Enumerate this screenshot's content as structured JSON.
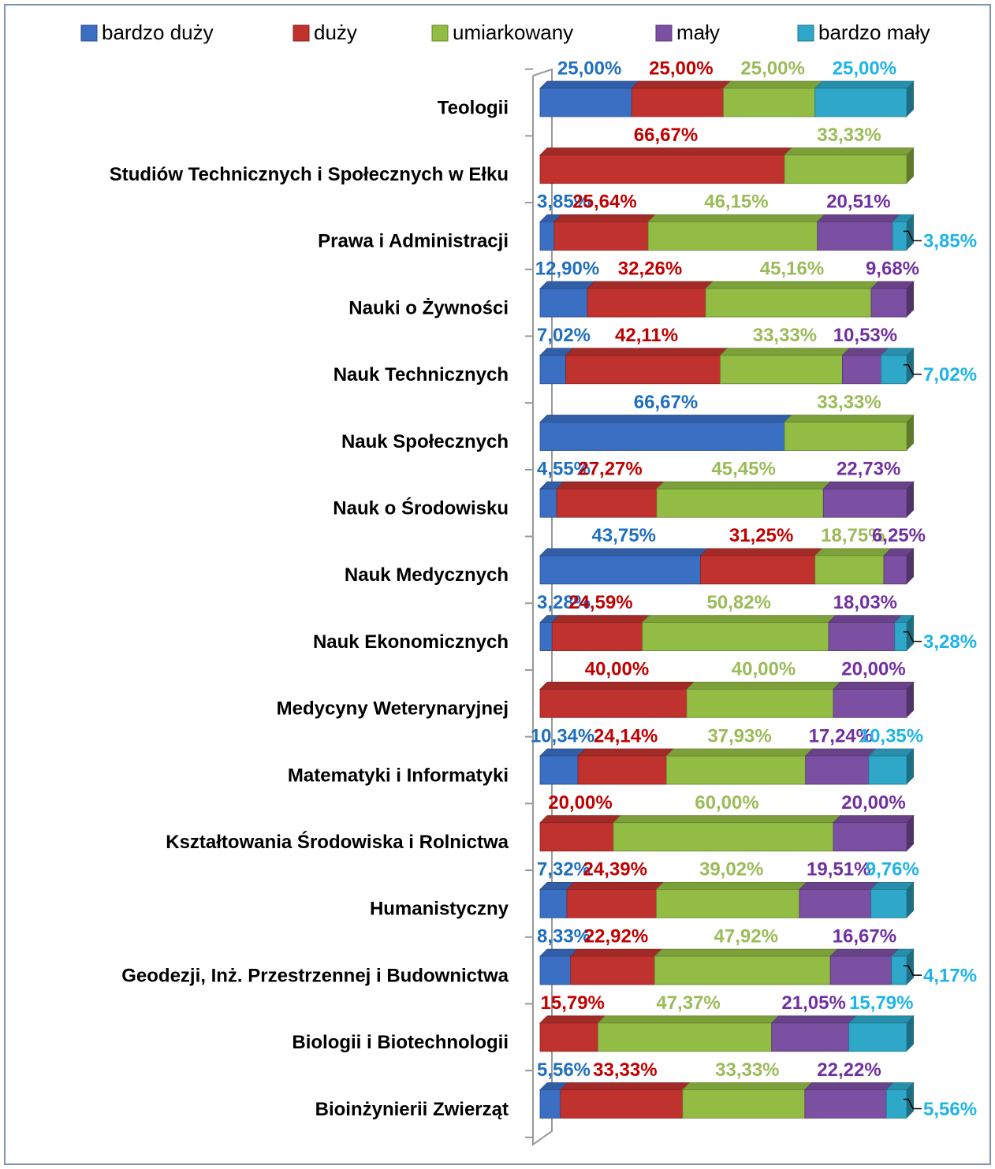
{
  "chart_data": {
    "type": "stacked-bar-horizontal",
    "categories": [
      "Teologii",
      "Studiów Technicznych i Społecznych w Ełku",
      "Prawa i Administracji",
      "Nauki o Żywności",
      "Nauk Technicznych",
      "Nauk Społecznych",
      "Nauk o Środowisku",
      "Nauk Medycznych",
      "Nauk Ekonomicznych",
      "Medycyny Weterynaryjnej",
      "Matematyki i Informatyki",
      "Kształtowania Środowiska i Rolnictwa",
      "Humanistyczny",
      "Geodezji, Inż. Przestrzennej i Budownictwa",
      "Biologii i Biotechnologii",
      "Bioinżynierii Zwierząt"
    ],
    "xlim": [
      0,
      100
    ],
    "legend": "top",
    "series": [
      {
        "name": "bardzo duży",
        "color": "#3a6fc4",
        "label_color": "#1f6fbf",
        "values": [
          25,
          null,
          3.85,
          12.9,
          7.02,
          66.67,
          4.55,
          43.75,
          3.28,
          null,
          10.34,
          null,
          7.32,
          8.33,
          null,
          5.56
        ],
        "value_labels": [
          "25,00%",
          null,
          "3,85%",
          "12,90%",
          "7,02%",
          "66,67%",
          "4,55%",
          "43,75%",
          "3,28%",
          null,
          "10,34%",
          null,
          "7,32%",
          "8,33%",
          null,
          "5,56%"
        ]
      },
      {
        "name": "duży",
        "color": "#c0322e",
        "label_color": "#c00000",
        "values": [
          25,
          66.67,
          25.64,
          32.26,
          42.11,
          null,
          27.27,
          31.25,
          24.59,
          40,
          24.14,
          20,
          24.39,
          22.92,
          15.79,
          33.33
        ],
        "value_labels": [
          "25,00%",
          "66,67%",
          "25,64%",
          "32,26%",
          "42,11%",
          null,
          "27,27%",
          "31,25%",
          "24,59%",
          "40,00%",
          "24,14%",
          "20,00%",
          "24,39%",
          "22,92%",
          "15,79%",
          "33,33%"
        ]
      },
      {
        "name": "umiarkowany",
        "color": "#92bc44",
        "label_color": "#9bbb59",
        "values": [
          25,
          33.33,
          46.15,
          45.16,
          33.33,
          33.33,
          45.45,
          18.75,
          50.82,
          40,
          37.93,
          60,
          39.02,
          47.92,
          47.37,
          33.33
        ],
        "value_labels": [
          "25,00%",
          "33,33%",
          "46,15%",
          "45,16%",
          "33,33%",
          "33,33%",
          "45,45%",
          "18,75%",
          "50,82%",
          "40,00%",
          "37,93%",
          "60,00%",
          "39,02%",
          "47,92%",
          "47,37%",
          "33,33%"
        ]
      },
      {
        "name": "mały",
        "color": "#7b4fa2",
        "label_color": "#7030a0",
        "values": [
          null,
          null,
          20.51,
          9.68,
          10.53,
          null,
          22.73,
          6.25,
          18.03,
          20,
          17.24,
          20,
          19.51,
          16.67,
          21.05,
          22.22
        ],
        "value_labels": [
          null,
          null,
          "20,51%",
          "9,68%",
          "10,53%",
          null,
          "22,73%",
          "6,25%",
          "18,03%",
          "20,00%",
          "17,24%",
          "20,00%",
          "19,51%",
          "16,67%",
          "21,05%",
          "22,22%"
        ]
      },
      {
        "name": "bardzo mały",
        "color": "#2ea7c9",
        "label_color": "#1fb4e8",
        "values": [
          25,
          null,
          3.85,
          null,
          7.02,
          null,
          null,
          null,
          3.28,
          null,
          10.35,
          null,
          9.76,
          4.17,
          15.79,
          5.56
        ],
        "value_labels": [
          "25,00%",
          null,
          "3,85%",
          null,
          "7,02%",
          null,
          null,
          null,
          "3,28%",
          null,
          "10,35%",
          null,
          "9,76%",
          "4,17%",
          "15,79%",
          "5,56%"
        ]
      }
    ]
  }
}
